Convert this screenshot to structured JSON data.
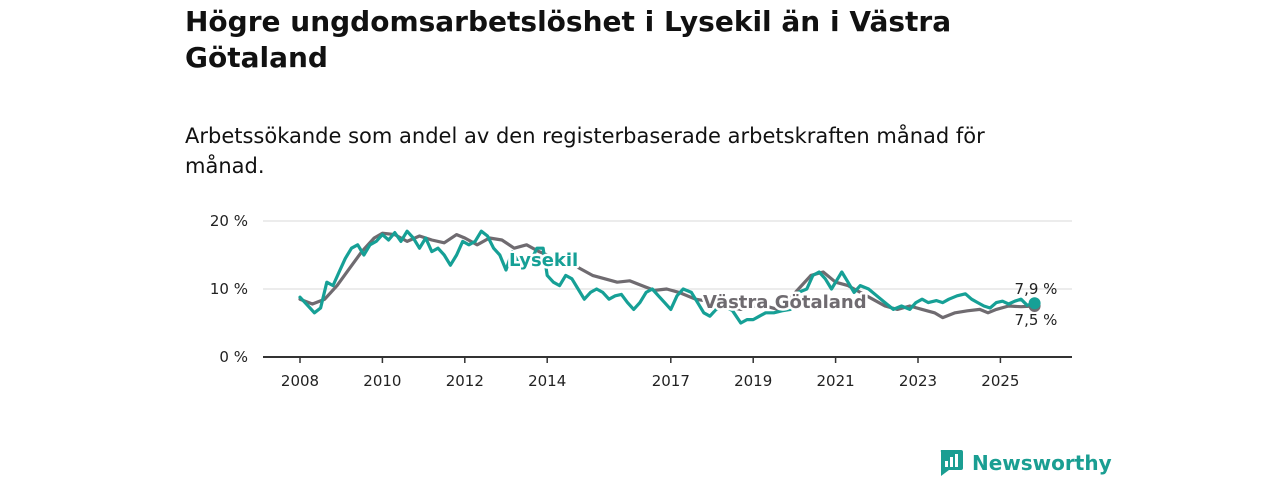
{
  "title": "Högre ungdomsarbetslöshet i Lysekil än i Västra Götaland",
  "subtitle": "Arbetssökande som andel av den registerbaserade arbetskraften månad för månad.",
  "brand": "Newsworthy",
  "colors": {
    "lysekil": "#16a096",
    "vg": "#6f6b70",
    "grid": "#d9d9d9",
    "axis": "#333333"
  },
  "chart_data": {
    "type": "line",
    "title": "Högre ungdomsarbetslöshet i Lysekil än i Västra Götaland",
    "subtitle": "Arbetssökande som andel av den registerbaserade arbetskraften månad för månad.",
    "xlabel": "",
    "ylabel": "",
    "x_range": [
      2008.0,
      2025.83
    ],
    "ylim": [
      0,
      20
    ],
    "y_ticks": [
      0,
      10,
      20
    ],
    "y_tick_labels": [
      "0 %",
      "10 %",
      "20 %"
    ],
    "x_ticks": [
      2008,
      2010,
      2012,
      2014,
      2017,
      2019,
      2021,
      2023,
      2025
    ],
    "x_tick_labels": [
      "2008",
      "2010",
      "2012",
      "2014",
      "2017",
      "2019",
      "2021",
      "2023",
      "2025"
    ],
    "grid": true,
    "series": [
      {
        "name": "Västra Götaland",
        "label": "Västra Götaland",
        "end_label": "7,5 %",
        "points": [
          [
            2008.0,
            8.5
          ],
          [
            2008.3,
            7.8
          ],
          [
            2008.6,
            8.5
          ],
          [
            2008.9,
            10.5
          ],
          [
            2009.2,
            13.0
          ],
          [
            2009.5,
            15.5
          ],
          [
            2009.8,
            17.5
          ],
          [
            2010.0,
            18.2
          ],
          [
            2010.3,
            18.0
          ],
          [
            2010.6,
            17.0
          ],
          [
            2010.9,
            17.8
          ],
          [
            2011.2,
            17.2
          ],
          [
            2011.5,
            16.8
          ],
          [
            2011.8,
            18.0
          ],
          [
            2012.0,
            17.5
          ],
          [
            2012.3,
            16.5
          ],
          [
            2012.6,
            17.5
          ],
          [
            2012.9,
            17.2
          ],
          [
            2013.2,
            16.0
          ],
          [
            2013.5,
            16.5
          ],
          [
            2013.8,
            15.5
          ],
          [
            2014.2,
            14.5
          ],
          [
            2014.5,
            14.0
          ],
          [
            2014.8,
            13.0
          ],
          [
            2015.1,
            12.0
          ],
          [
            2015.4,
            11.5
          ],
          [
            2015.7,
            11.0
          ],
          [
            2016.0,
            11.2
          ],
          [
            2016.3,
            10.5
          ],
          [
            2016.6,
            9.8
          ],
          [
            2016.9,
            10.0
          ],
          [
            2017.2,
            9.5
          ],
          [
            2017.6,
            8.5
          ],
          [
            2017.9,
            8.2
          ],
          [
            2018.3,
            7.5
          ],
          [
            2018.7,
            7.0
          ],
          [
            2019.0,
            7.5
          ],
          [
            2019.3,
            7.5
          ],
          [
            2019.6,
            7.0
          ],
          [
            2019.8,
            8.0
          ],
          [
            2020.1,
            10.0
          ],
          [
            2020.4,
            12.0
          ],
          [
            2020.7,
            12.5
          ],
          [
            2021.0,
            11.0
          ],
          [
            2021.3,
            10.5
          ],
          [
            2021.6,
            9.5
          ],
          [
            2021.9,
            8.5
          ],
          [
            2022.2,
            7.5
          ],
          [
            2022.5,
            7.0
          ],
          [
            2022.8,
            7.5
          ],
          [
            2023.1,
            7.0
          ],
          [
            2023.4,
            6.5
          ],
          [
            2023.6,
            5.8
          ],
          [
            2023.9,
            6.5
          ],
          [
            2024.2,
            6.8
          ],
          [
            2024.5,
            7.0
          ],
          [
            2024.7,
            6.5
          ],
          [
            2024.9,
            7.0
          ],
          [
            2025.2,
            7.5
          ],
          [
            2025.5,
            7.4
          ],
          [
            2025.83,
            7.5
          ]
        ]
      },
      {
        "name": "Lysekil",
        "label": "Lysekil",
        "end_label": "7,9 %",
        "points": [
          [
            2008.0,
            8.8
          ],
          [
            2008.2,
            7.5
          ],
          [
            2008.35,
            6.5
          ],
          [
            2008.5,
            7.2
          ],
          [
            2008.65,
            11.0
          ],
          [
            2008.8,
            10.5
          ],
          [
            2008.95,
            12.5
          ],
          [
            2009.1,
            14.5
          ],
          [
            2009.25,
            16.0
          ],
          [
            2009.4,
            16.5
          ],
          [
            2009.55,
            15.0
          ],
          [
            2009.7,
            16.5
          ],
          [
            2009.85,
            17.0
          ],
          [
            2010.0,
            18.0
          ],
          [
            2010.15,
            17.2
          ],
          [
            2010.3,
            18.3
          ],
          [
            2010.45,
            17.0
          ],
          [
            2010.6,
            18.5
          ],
          [
            2010.75,
            17.5
          ],
          [
            2010.9,
            16.0
          ],
          [
            2011.05,
            17.5
          ],
          [
            2011.2,
            15.5
          ],
          [
            2011.35,
            16.0
          ],
          [
            2011.5,
            15.0
          ],
          [
            2011.65,
            13.5
          ],
          [
            2011.8,
            15.0
          ],
          [
            2011.95,
            17.0
          ],
          [
            2012.1,
            16.5
          ],
          [
            2012.25,
            17.0
          ],
          [
            2012.4,
            18.5
          ],
          [
            2012.55,
            17.8
          ],
          [
            2012.7,
            16.0
          ],
          [
            2012.85,
            15.0
          ],
          [
            2013.0,
            12.8
          ],
          [
            2013.15,
            15.5
          ],
          [
            2013.3,
            14.0
          ],
          [
            2013.45,
            13.0
          ],
          [
            2013.6,
            14.0
          ],
          [
            2013.75,
            16.0
          ],
          [
            2013.9,
            16.0
          ],
          [
            2014.0,
            12.0
          ],
          [
            2014.15,
            11.0
          ],
          [
            2014.3,
            10.5
          ],
          [
            2014.45,
            12.0
          ],
          [
            2014.6,
            11.5
          ],
          [
            2014.75,
            10.0
          ],
          [
            2014.9,
            8.5
          ],
          [
            2015.05,
            9.5
          ],
          [
            2015.2,
            10.0
          ],
          [
            2015.35,
            9.5
          ],
          [
            2015.5,
            8.5
          ],
          [
            2015.65,
            9.0
          ],
          [
            2015.8,
            9.2
          ],
          [
            2015.95,
            8.0
          ],
          [
            2016.1,
            7.0
          ],
          [
            2016.25,
            8.0
          ],
          [
            2016.4,
            9.5
          ],
          [
            2016.55,
            10.0
          ],
          [
            2016.7,
            9.0
          ],
          [
            2016.85,
            8.0
          ],
          [
            2017.0,
            7.0
          ],
          [
            2017.15,
            9.0
          ],
          [
            2017.3,
            10.0
          ],
          [
            2017.5,
            9.5
          ],
          [
            2017.65,
            8.0
          ],
          [
            2017.8,
            6.5
          ],
          [
            2017.95,
            6.0
          ],
          [
            2018.1,
            7.0
          ],
          [
            2018.3,
            7.5
          ],
          [
            2018.5,
            6.8
          ],
          [
            2018.7,
            5.0
          ],
          [
            2018.85,
            5.5
          ],
          [
            2019.0,
            5.5
          ],
          [
            2019.15,
            6.0
          ],
          [
            2019.3,
            6.5
          ],
          [
            2019.5,
            6.5
          ],
          [
            2019.7,
            6.8
          ],
          [
            2019.9,
            7.0
          ],
          [
            2020.1,
            9.5
          ],
          [
            2020.3,
            10.0
          ],
          [
            2020.45,
            12.0
          ],
          [
            2020.6,
            12.5
          ],
          [
            2020.75,
            11.5
          ],
          [
            2020.9,
            10.0
          ],
          [
            2021.0,
            11.0
          ],
          [
            2021.15,
            12.5
          ],
          [
            2021.3,
            11.0
          ],
          [
            2021.45,
            9.5
          ],
          [
            2021.6,
            10.5
          ],
          [
            2021.8,
            10.0
          ],
          [
            2022.0,
            9.0
          ],
          [
            2022.2,
            8.0
          ],
          [
            2022.4,
            7.0
          ],
          [
            2022.6,
            7.5
          ],
          [
            2022.8,
            7.0
          ],
          [
            2022.95,
            8.0
          ],
          [
            2023.1,
            8.5
          ],
          [
            2023.25,
            8.0
          ],
          [
            2023.45,
            8.3
          ],
          [
            2023.6,
            8.0
          ],
          [
            2023.75,
            8.5
          ],
          [
            2023.95,
            9.0
          ],
          [
            2024.15,
            9.3
          ],
          [
            2024.3,
            8.5
          ],
          [
            2024.45,
            8.0
          ],
          [
            2024.6,
            7.5
          ],
          [
            2024.75,
            7.2
          ],
          [
            2024.9,
            8.0
          ],
          [
            2025.05,
            8.2
          ],
          [
            2025.2,
            7.8
          ],
          [
            2025.35,
            8.2
          ],
          [
            2025.5,
            8.5
          ],
          [
            2025.65,
            7.6
          ],
          [
            2025.83,
            7.9
          ]
        ]
      }
    ]
  }
}
